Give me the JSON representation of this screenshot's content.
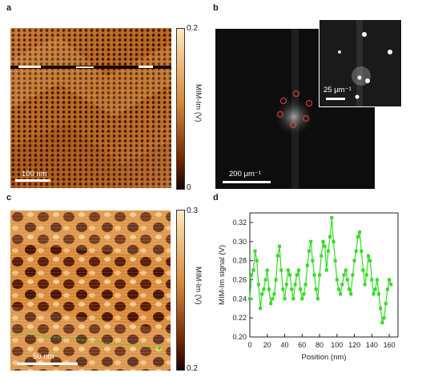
{
  "panels": {
    "a": {
      "letter": "a",
      "scalebar": "100 nm",
      "colorbar": {
        "top": "0.2",
        "bottom": "0",
        "label": "MIM-Im (V)"
      }
    },
    "b": {
      "letter": "b",
      "scalebar": "200 μm⁻¹",
      "inset_scalebar": "25 μm⁻¹"
    },
    "c": {
      "letter": "c",
      "scalebar": "50 nm",
      "colorbar": {
        "top": "0.3",
        "bottom": "0.2",
        "label": "MIM-Im (V)"
      }
    },
    "d": {
      "letter": "d"
    }
  },
  "colors": {
    "afm_dark": "#2a0a00",
    "afm_mid": "#b55a16",
    "afm_light": "#ffe0a8",
    "series": "#33dd22",
    "fft_bg": "#0d0d0d",
    "fft_spot": "#ff3b3b"
  },
  "chart_data": {
    "type": "line",
    "xlabel": "Position (nm)",
    "ylabel": "MIM-Im signal (V)",
    "xlim": [
      0,
      170
    ],
    "ylim": [
      0.2,
      0.33
    ],
    "xticks": [
      "0",
      "20",
      "40",
      "60",
      "80",
      "100",
      "120",
      "140",
      "160"
    ],
    "yticks": [
      "0.20",
      "0.22",
      "0.24",
      "0.26",
      "0.28",
      "0.30",
      "0.32"
    ],
    "grid": false,
    "x": [
      0,
      2,
      4,
      6,
      8,
      10,
      12,
      14,
      16,
      18,
      20,
      22,
      24,
      26,
      28,
      30,
      32,
      34,
      36,
      38,
      40,
      42,
      44,
      46,
      48,
      50,
      52,
      54,
      56,
      58,
      60,
      62,
      64,
      66,
      68,
      70,
      72,
      74,
      76,
      78,
      80,
      82,
      84,
      86,
      88,
      90,
      92,
      94,
      96,
      98,
      100,
      102,
      104,
      106,
      108,
      110,
      112,
      114,
      116,
      118,
      120,
      122,
      124,
      126,
      128,
      130,
      132,
      134,
      136,
      138,
      140,
      142,
      144,
      146,
      148,
      150,
      152,
      154,
      156,
      158,
      160,
      162
    ],
    "y": [
      0.24,
      0.265,
      0.27,
      0.29,
      0.28,
      0.255,
      0.23,
      0.245,
      0.25,
      0.26,
      0.27,
      0.25,
      0.235,
      0.24,
      0.245,
      0.26,
      0.285,
      0.295,
      0.27,
      0.25,
      0.24,
      0.255,
      0.27,
      0.265,
      0.25,
      0.24,
      0.255,
      0.265,
      0.27,
      0.25,
      0.24,
      0.245,
      0.255,
      0.275,
      0.29,
      0.3,
      0.28,
      0.265,
      0.25,
      0.24,
      0.265,
      0.285,
      0.3,
      0.295,
      0.27,
      0.29,
      0.305,
      0.325,
      0.3,
      0.28,
      0.26,
      0.25,
      0.245,
      0.255,
      0.265,
      0.27,
      0.26,
      0.25,
      0.245,
      0.265,
      0.28,
      0.29,
      0.305,
      0.31,
      0.29,
      0.27,
      0.255,
      0.265,
      0.285,
      0.28,
      0.26,
      0.245,
      0.25,
      0.26,
      0.245,
      0.23,
      0.215,
      0.22,
      0.235,
      0.25,
      0.26,
      0.255
    ]
  }
}
